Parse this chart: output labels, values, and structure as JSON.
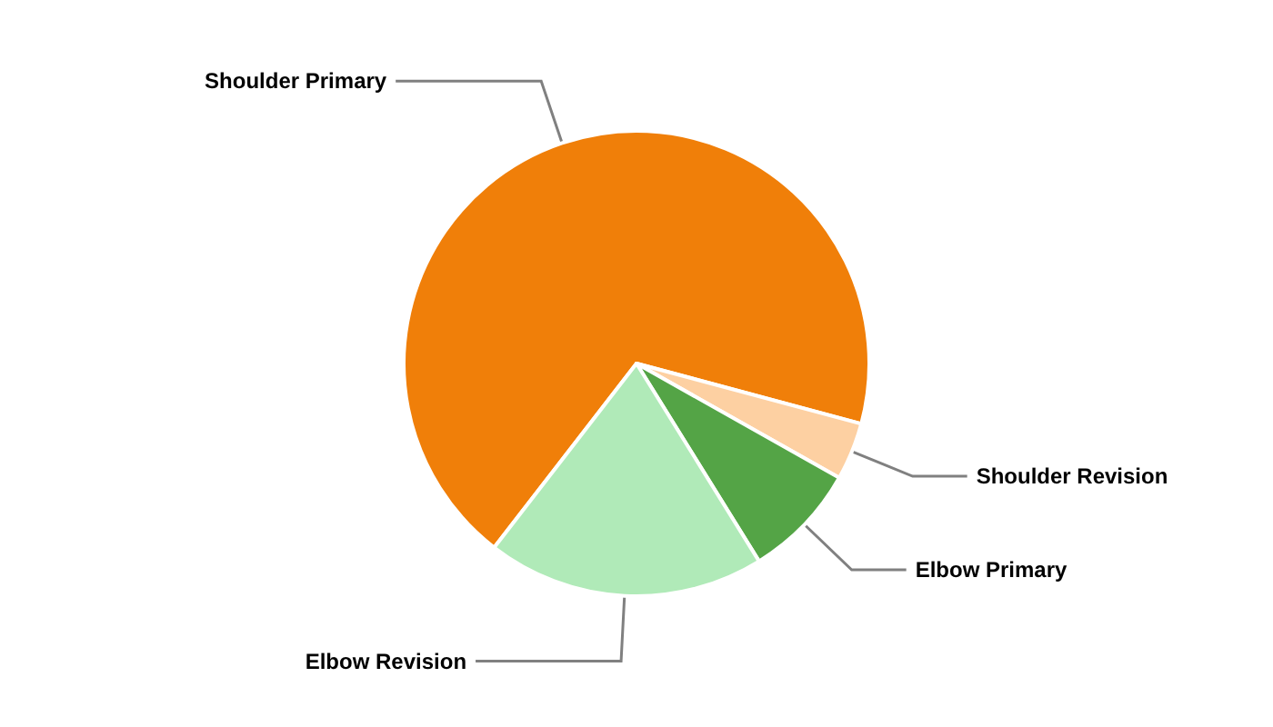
{
  "chart_data": {
    "type": "pie",
    "categories": [
      "Shoulder Primary",
      "Shoulder Revision",
      "Elbow Primary",
      "Elbow Revision"
    ],
    "values": [
      68.7,
      4.0,
      8.0,
      19.3
    ],
    "colors": [
      "#f07f09",
      "#fdd0a2",
      "#54a446",
      "#b0eab8"
    ]
  }
}
